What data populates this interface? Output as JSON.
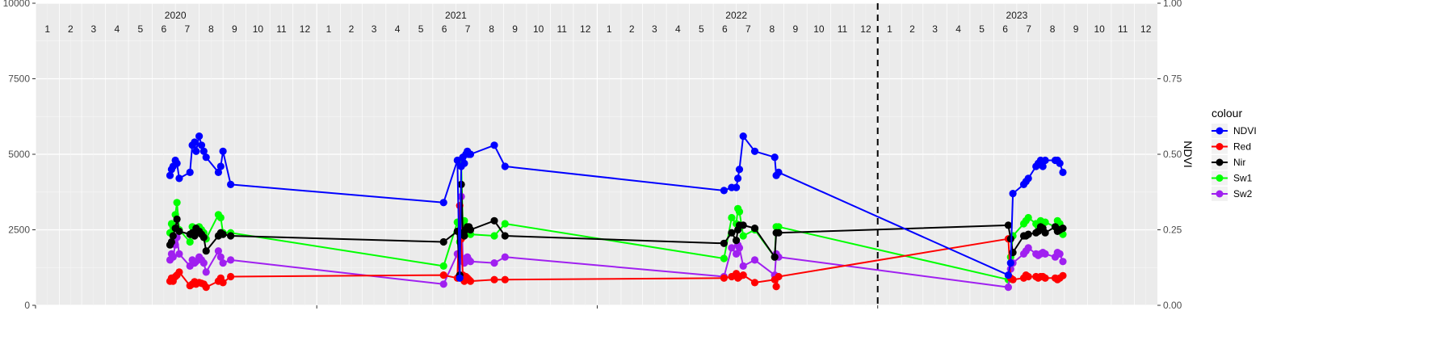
{
  "chart_data": {
    "type": "line",
    "title": "",
    "xlabel": "",
    "ylabel": "",
    "y2label": "NDVI",
    "x_range": [
      "2020-01-01",
      "2023-12-31"
    ],
    "ylim": [
      0,
      10000
    ],
    "y2lim": [
      0,
      1
    ],
    "yticks": [
      0,
      2500,
      5000,
      7500,
      10000
    ],
    "y2ticks": [
      "0.00",
      "0.25",
      "0.50",
      "0.75",
      "1.00"
    ],
    "years": [
      "2020",
      "2021",
      "2022",
      "2023"
    ],
    "months": [
      "1",
      "2",
      "3",
      "4",
      "5",
      "6",
      "7",
      "8",
      "9",
      "10",
      "11",
      "12"
    ],
    "vline_date": "2023-01-01",
    "grid": true,
    "legend_title": "colour",
    "legend_position": "right",
    "series": [
      {
        "name": "NDVI",
        "color": "#0000FF",
        "axis": "right",
        "x": [
          "2020-06-24",
          "2020-06-26",
          "2020-06-28",
          "2020-07-01",
          "2020-07-03",
          "2020-07-06",
          "2020-07-20",
          "2020-07-23",
          "2020-07-26",
          "2020-07-28",
          "2020-08-01",
          "2020-08-04",
          "2020-08-07",
          "2020-08-10",
          "2020-08-26",
          "2020-08-29",
          "2020-09-01",
          "2020-09-11",
          "2021-06-15",
          "2021-07-03",
          "2021-07-06",
          "2021-07-08",
          "2021-07-10",
          "2021-07-12",
          "2021-07-14",
          "2021-07-16",
          "2021-07-18",
          "2021-07-20",
          "2021-08-20",
          "2021-09-03",
          "2022-06-15",
          "2022-06-25",
          "2022-07-01",
          "2022-07-03",
          "2022-07-05",
          "2022-07-10",
          "2022-07-25",
          "2022-08-20",
          "2022-08-22",
          "2022-08-25",
          "2023-06-20",
          "2023-06-23",
          "2023-06-26",
          "2023-07-10",
          "2023-07-13",
          "2023-07-16",
          "2023-07-26",
          "2023-07-29",
          "2023-08-01",
          "2023-08-04",
          "2023-08-07",
          "2023-08-20",
          "2023-08-23",
          "2023-08-26",
          "2023-08-30"
        ],
        "y": [
          0.43,
          0.45,
          0.46,
          0.48,
          0.47,
          0.42,
          0.44,
          0.53,
          0.54,
          0.51,
          0.56,
          0.53,
          0.51,
          0.49,
          0.44,
          0.46,
          0.51,
          0.4,
          0.34,
          0.48,
          0.09,
          0.46,
          0.49,
          0.47,
          0.5,
          0.51,
          0.5,
          0.5,
          0.53,
          0.46,
          0.38,
          0.39,
          0.39,
          0.42,
          0.45,
          0.56,
          0.51,
          0.49,
          0.43,
          0.44,
          0.1,
          0.14,
          0.37,
          0.4,
          0.41,
          0.42,
          0.46,
          0.47,
          0.48,
          0.46,
          0.48,
          0.48,
          0.48,
          0.47,
          0.44
        ]
      },
      {
        "name": "Red",
        "color": "#FF0000",
        "axis": "left",
        "x": [
          "2020-06-24",
          "2020-06-26",
          "2020-06-28",
          "2020-07-01",
          "2020-07-03",
          "2020-07-06",
          "2020-07-20",
          "2020-07-23",
          "2020-07-26",
          "2020-07-28",
          "2020-08-01",
          "2020-08-04",
          "2020-08-07",
          "2020-08-10",
          "2020-08-26",
          "2020-08-29",
          "2020-09-01",
          "2020-09-11",
          "2021-06-15",
          "2021-07-03",
          "2021-07-06",
          "2021-07-08",
          "2021-07-10",
          "2021-07-12",
          "2021-07-14",
          "2021-07-16",
          "2021-07-18",
          "2021-07-20",
          "2021-08-20",
          "2021-09-03",
          "2022-06-15",
          "2022-06-25",
          "2022-07-01",
          "2022-07-03",
          "2022-07-05",
          "2022-07-10",
          "2022-07-25",
          "2022-08-20",
          "2022-08-22",
          "2022-08-25",
          "2023-06-20",
          "2023-06-23",
          "2023-06-26",
          "2023-07-10",
          "2023-07-13",
          "2023-07-16",
          "2023-07-26",
          "2023-07-29",
          "2023-08-01",
          "2023-08-04",
          "2023-08-07",
          "2023-08-20",
          "2023-08-23",
          "2023-08-26",
          "2023-08-30"
        ],
        "y": [
          800,
          900,
          800,
          950,
          1000,
          1100,
          650,
          700,
          780,
          700,
          750,
          730,
          700,
          600,
          800,
          900,
          750,
          950,
          1000,
          900,
          3300,
          2200,
          1000,
          800,
          950,
          900,
          850,
          800,
          850,
          850,
          900,
          950,
          1050,
          900,
          950,
          1000,
          750,
          850,
          620,
          950,
          2200,
          900,
          850,
          900,
          1000,
          950,
          950,
          900,
          950,
          950,
          900,
          900,
          850,
          900,
          980
        ]
      },
      {
        "name": "Nir",
        "color": "#000000",
        "axis": "left",
        "x": [
          "2020-06-24",
          "2020-06-26",
          "2020-06-28",
          "2020-07-01",
          "2020-07-03",
          "2020-07-06",
          "2020-07-20",
          "2020-07-23",
          "2020-07-26",
          "2020-07-28",
          "2020-08-01",
          "2020-08-04",
          "2020-08-07",
          "2020-08-10",
          "2020-08-26",
          "2020-08-29",
          "2020-09-01",
          "2020-09-11",
          "2021-06-15",
          "2021-07-03",
          "2021-07-06",
          "2021-07-08",
          "2021-07-10",
          "2021-07-12",
          "2021-07-14",
          "2021-07-16",
          "2021-07-18",
          "2021-07-20",
          "2021-08-20",
          "2021-09-03",
          "2022-06-15",
          "2022-06-25",
          "2022-07-01",
          "2022-07-03",
          "2022-07-05",
          "2022-07-10",
          "2022-07-25",
          "2022-08-20",
          "2022-08-22",
          "2022-08-25",
          "2023-06-20",
          "2023-06-23",
          "2023-06-26",
          "2023-07-10",
          "2023-07-13",
          "2023-07-16",
          "2023-07-26",
          "2023-07-29",
          "2023-08-01",
          "2023-08-04",
          "2023-08-07",
          "2023-08-20",
          "2023-08-23",
          "2023-08-26",
          "2023-08-30"
        ],
        "y": [
          2000,
          2100,
          2300,
          2550,
          2850,
          2450,
          2350,
          2400,
          2300,
          2550,
          2450,
          2350,
          2250,
          1800,
          2300,
          2400,
          2350,
          2300,
          2100,
          2450,
          1000,
          4000,
          2400,
          2300,
          2500,
          2600,
          2600,
          2500,
          2800,
          2300,
          2050,
          2400,
          2150,
          2500,
          2650,
          2650,
          2550,
          1600,
          2400,
          2400,
          2650,
          2200,
          1750,
          2300,
          2300,
          2350,
          2400,
          2450,
          2600,
          2550,
          2400,
          2600,
          2450,
          2500,
          2550
        ]
      },
      {
        "name": "Sw1",
        "color": "#00FF00",
        "axis": "left",
        "x": [
          "2020-06-24",
          "2020-06-26",
          "2020-06-28",
          "2020-07-01",
          "2020-07-03",
          "2020-07-06",
          "2020-07-20",
          "2020-07-23",
          "2020-07-26",
          "2020-07-28",
          "2020-08-01",
          "2020-08-04",
          "2020-08-07",
          "2020-08-10",
          "2020-08-26",
          "2020-08-29",
          "2020-09-01",
          "2020-09-11",
          "2021-06-15",
          "2021-07-03",
          "2021-07-06",
          "2021-07-08",
          "2021-07-10",
          "2021-07-12",
          "2021-07-14",
          "2021-07-16",
          "2021-07-18",
          "2021-07-20",
          "2021-08-20",
          "2021-09-03",
          "2022-06-15",
          "2022-06-25",
          "2022-07-01",
          "2022-07-03",
          "2022-07-05",
          "2022-07-10",
          "2022-07-25",
          "2022-08-20",
          "2022-08-22",
          "2022-08-25",
          "2023-06-20",
          "2023-06-23",
          "2023-06-26",
          "2023-07-10",
          "2023-07-13",
          "2023-07-16",
          "2023-07-26",
          "2023-07-29",
          "2023-08-01",
          "2023-08-04",
          "2023-08-07",
          "2023-08-20",
          "2023-08-23",
          "2023-08-26",
          "2023-08-30"
        ],
        "y": [
          2400,
          2700,
          2600,
          3000,
          3400,
          2500,
          2100,
          2600,
          2400,
          2500,
          2600,
          2500,
          2400,
          2200,
          3000,
          2900,
          2400,
          2400,
          1300,
          2750,
          2100,
          4700,
          2600,
          2800,
          2500,
          2450,
          2400,
          2350,
          2300,
          2700,
          1550,
          2900,
          2700,
          3200,
          3100,
          2300,
          2500,
          1600,
          2600,
          2600,
          850,
          1600,
          2300,
          2700,
          2800,
          2900,
          2700,
          2600,
          2800,
          2700,
          2750,
          2600,
          2800,
          2700,
          2350
        ]
      },
      {
        "name": "Sw2",
        "color": "#A020F0",
        "axis": "left",
        "x": [
          "2020-06-24",
          "2020-06-26",
          "2020-06-28",
          "2020-07-01",
          "2020-07-03",
          "2020-07-06",
          "2020-07-20",
          "2020-07-23",
          "2020-07-26",
          "2020-07-28",
          "2020-08-01",
          "2020-08-04",
          "2020-08-07",
          "2020-08-10",
          "2020-08-26",
          "2020-08-29",
          "2020-09-01",
          "2020-09-11",
          "2021-06-15",
          "2021-07-03",
          "2021-07-06",
          "2021-07-08",
          "2021-07-10",
          "2021-07-12",
          "2021-07-14",
          "2021-07-16",
          "2021-07-18",
          "2021-07-20",
          "2021-08-20",
          "2021-09-03",
          "2022-06-15",
          "2022-06-25",
          "2022-07-01",
          "2022-07-03",
          "2022-07-05",
          "2022-07-10",
          "2022-07-25",
          "2022-08-20",
          "2022-08-22",
          "2022-08-25",
          "2023-06-20",
          "2023-06-23",
          "2023-06-26",
          "2023-07-10",
          "2023-07-13",
          "2023-07-16",
          "2023-07-26",
          "2023-07-29",
          "2023-08-01",
          "2023-08-04",
          "2023-08-07",
          "2023-08-20",
          "2023-08-23",
          "2023-08-26",
          "2023-08-30"
        ],
        "y": [
          1500,
          1700,
          1600,
          2000,
          2250,
          1700,
          1300,
          1500,
          1400,
          1450,
          1600,
          1500,
          1400,
          1100,
          1800,
          1600,
          1400,
          1500,
          700,
          1700,
          1000,
          3600,
          1550,
          1400,
          1500,
          1600,
          1500,
          1450,
          1400,
          1600,
          950,
          1900,
          1700,
          2000,
          1900,
          1300,
          1500,
          1000,
          1700,
          1600,
          600,
          1200,
          1400,
          1700,
          1800,
          1900,
          1700,
          1650,
          1700,
          1750,
          1700,
          1600,
          1750,
          1700,
          1450
        ]
      }
    ]
  }
}
